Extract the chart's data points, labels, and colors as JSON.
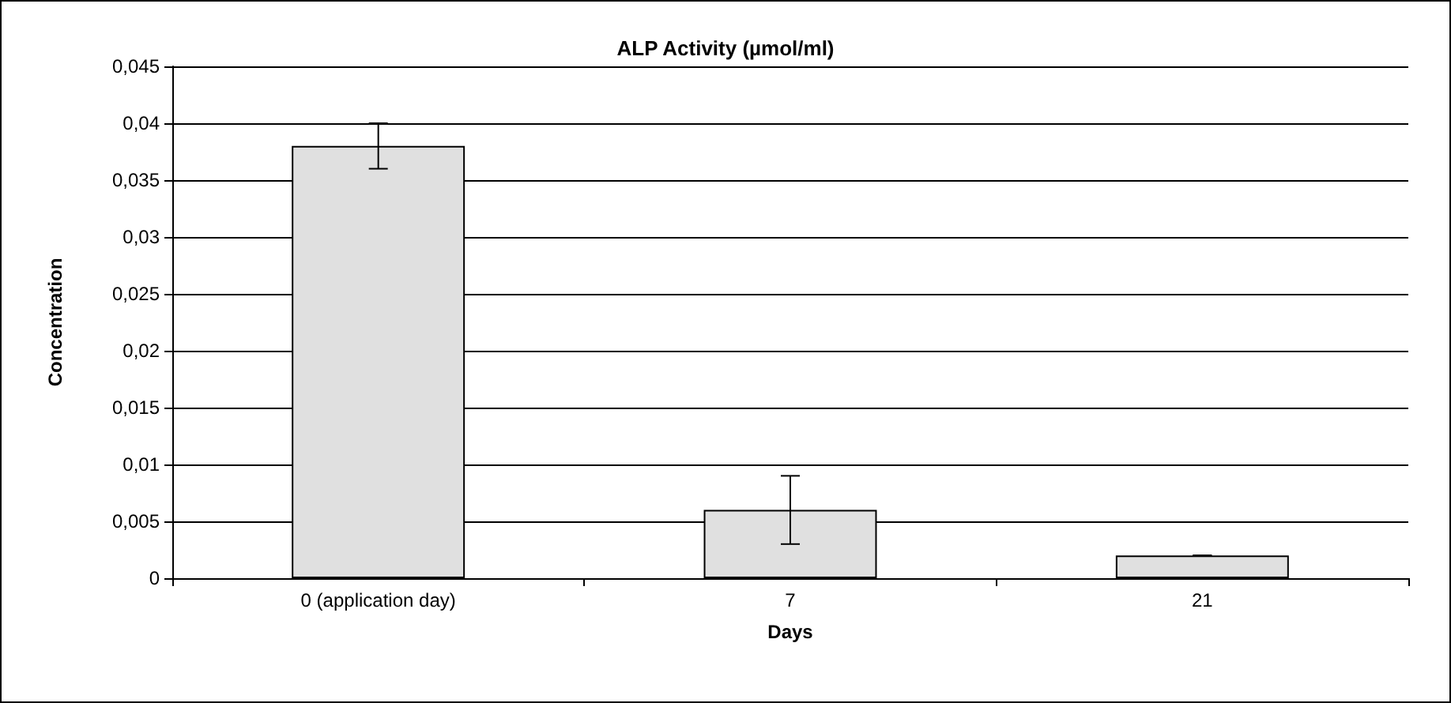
{
  "chart_data": {
    "type": "bar",
    "title": "ALP Activity (µmol/ml)",
    "xlabel": "Days",
    "ylabel": "Concentration",
    "categories": [
      "0 (application day)",
      "7",
      "21"
    ],
    "values": [
      0.038,
      0.006,
      0.002
    ],
    "errors": [
      0.002,
      0.003,
      0
    ],
    "color": "#e0e0e0",
    "ylim": [
      0,
      0.045
    ],
    "yticks": [
      {
        "value": 0,
        "label": "0"
      },
      {
        "value": 0.005,
        "label": "0,005"
      },
      {
        "value": 0.01,
        "label": "0,01"
      },
      {
        "value": 0.015,
        "label": "0,015"
      },
      {
        "value": 0.02,
        "label": "0,02"
      },
      {
        "value": 0.025,
        "label": "0,025"
      },
      {
        "value": 0.03,
        "label": "0,03"
      },
      {
        "value": 0.035,
        "label": "0,035"
      },
      {
        "value": 0.04,
        "label": "0,04"
      },
      {
        "value": 0.045,
        "label": "0,045"
      }
    ],
    "grid": "y"
  }
}
